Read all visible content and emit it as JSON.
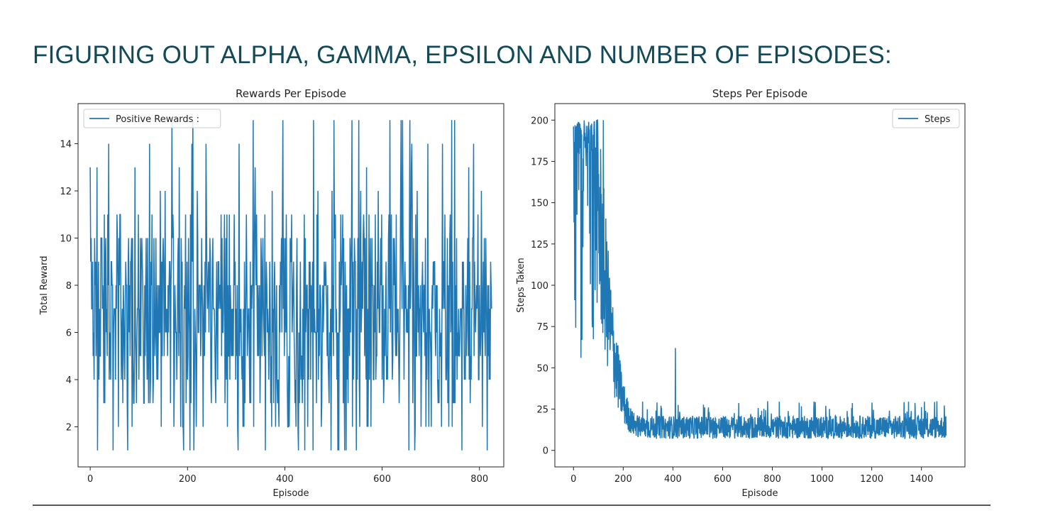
{
  "slide": {
    "title": "FIGURING OUT ALPHA, GAMMA, EPSILON AND NUMBER OF EPISODES:"
  },
  "colors": {
    "line": "#1f77b4",
    "title": "#124a5a",
    "axis": "#222222",
    "divider": "#555555"
  },
  "chart_data": [
    {
      "type": "line",
      "title": "Rewards Per Episode",
      "xlabel": "Episode",
      "ylabel": "Total Reward",
      "xlim": [
        -25,
        850
      ],
      "ylim": [
        0.3,
        15.7
      ],
      "xticks": [
        0,
        200,
        400,
        600,
        800
      ],
      "yticks": [
        2,
        4,
        6,
        8,
        10,
        12,
        14
      ],
      "legend": {
        "position": "upper-left",
        "entries": [
          "Positive Rewards :"
        ]
      },
      "grid": false,
      "series": [
        {
          "name": "Positive Rewards :",
          "color": "#1f77b4",
          "x_start": 0,
          "x_step": 1,
          "count": 826,
          "generation": "noisy series, values approx integers in range 1-15, mean about 7, no trend",
          "summary": {
            "min": 1,
            "max": 15,
            "approx_mean": 7
          }
        }
      ]
    },
    {
      "type": "line",
      "title": "Steps Per Episode",
      "xlabel": "Episode",
      "ylabel": "Steps Taken",
      "xlim": [
        -75,
        1575
      ],
      "ylim": [
        -10,
        210
      ],
      "xticks": [
        0,
        200,
        400,
        600,
        800,
        1000,
        1200,
        1400
      ],
      "yticks": [
        0,
        25,
        50,
        75,
        100,
        125,
        150,
        175,
        200
      ],
      "legend": {
        "position": "upper-right",
        "entries": [
          "Steps"
        ]
      },
      "grid": false,
      "series": [
        {
          "name": "Steps",
          "color": "#1f77b4",
          "x_start": 0,
          "x_step": 1,
          "count": 1500,
          "generation": "starts near 200 for first ~90 episodes, decays rapidly to ~15 by episode 250, then fluctuates 6-25",
          "key_points": [
            [
              0,
              200
            ],
            [
              5,
              91
            ],
            [
              30,
              56
            ],
            [
              60,
              200
            ],
            [
              100,
              140
            ],
            [
              150,
              80
            ],
            [
              200,
              45
            ],
            [
              300,
              25
            ],
            [
              400,
              62
            ],
            [
              500,
              15
            ],
            [
              800,
              15
            ],
            [
              1000,
              15
            ],
            [
              1200,
              15
            ],
            [
              1499,
              12
            ]
          ]
        }
      ]
    }
  ]
}
